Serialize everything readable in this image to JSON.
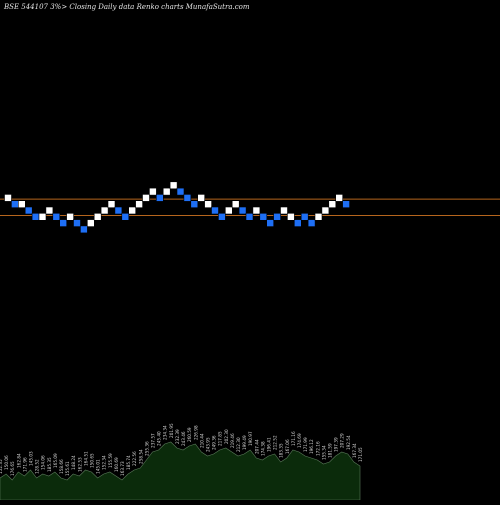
{
  "header": {
    "title": "BSE 544107 3%>  Closing Daily data  Renko  charts MunafaSutra.com"
  },
  "chart_data": {
    "type": "renko",
    "title": "BSE 544107 3%>  Closing Daily data  Renko  charts MunafaSutra.com",
    "brick_size_percent": 3,
    "colors": {
      "up": "#ffffff",
      "down": "#1e6ff5",
      "line": "#b5651d",
      "volume_fill": "#0b2b0b",
      "volume_stroke": "#5a7a5a"
    },
    "bricks": [
      {
        "dir": "up",
        "level": 12
      },
      {
        "dir": "down",
        "level": 11
      },
      {
        "dir": "up",
        "level": 11
      },
      {
        "dir": "down",
        "level": 10
      },
      {
        "dir": "down",
        "level": 9
      },
      {
        "dir": "up",
        "level": 9
      },
      {
        "dir": "up",
        "level": 10
      },
      {
        "dir": "down",
        "level": 9
      },
      {
        "dir": "down",
        "level": 8
      },
      {
        "dir": "up",
        "level": 9
      },
      {
        "dir": "down",
        "level": 8
      },
      {
        "dir": "down",
        "level": 7
      },
      {
        "dir": "up",
        "level": 8
      },
      {
        "dir": "up",
        "level": 9
      },
      {
        "dir": "up",
        "level": 10
      },
      {
        "dir": "up",
        "level": 11
      },
      {
        "dir": "down",
        "level": 10
      },
      {
        "dir": "down",
        "level": 9
      },
      {
        "dir": "up",
        "level": 10
      },
      {
        "dir": "up",
        "level": 11
      },
      {
        "dir": "up",
        "level": 12
      },
      {
        "dir": "up",
        "level": 13
      },
      {
        "dir": "down",
        "level": 12
      },
      {
        "dir": "up",
        "level": 13
      },
      {
        "dir": "up",
        "level": 14
      },
      {
        "dir": "down",
        "level": 13
      },
      {
        "dir": "down",
        "level": 12
      },
      {
        "dir": "down",
        "level": 11
      },
      {
        "dir": "up",
        "level": 12
      },
      {
        "dir": "up",
        "level": 11
      },
      {
        "dir": "down",
        "level": 10
      },
      {
        "dir": "down",
        "level": 9
      },
      {
        "dir": "up",
        "level": 10
      },
      {
        "dir": "up",
        "level": 11
      },
      {
        "dir": "down",
        "level": 10
      },
      {
        "dir": "down",
        "level": 9
      },
      {
        "dir": "up",
        "level": 10
      },
      {
        "dir": "down",
        "level": 9
      },
      {
        "dir": "down",
        "level": 8
      },
      {
        "dir": "down",
        "level": 9
      },
      {
        "dir": "up",
        "level": 10
      },
      {
        "dir": "up",
        "level": 9
      },
      {
        "dir": "down",
        "level": 8
      },
      {
        "dir": "down",
        "level": 9
      },
      {
        "dir": "down",
        "level": 8
      },
      {
        "dir": "up",
        "level": 9
      },
      {
        "dir": "up",
        "level": 10
      },
      {
        "dir": "up",
        "level": 11
      },
      {
        "dir": "up",
        "level": 12
      },
      {
        "dir": "down",
        "level": 11
      }
    ],
    "reference_lines": [
      11.8,
      9.2
    ],
    "volume": {
      "values": [
        22,
        26,
        20,
        28,
        24,
        30,
        22,
        26,
        24,
        28,
        22,
        20,
        26,
        24,
        30,
        28,
        22,
        26,
        28,
        24,
        20,
        26,
        30,
        32,
        40,
        48,
        50,
        56,
        58,
        52,
        50,
        54,
        56,
        48,
        44,
        46,
        50,
        52,
        48,
        44,
        46,
        50,
        42,
        40,
        44,
        46,
        38,
        42,
        50,
        48,
        44,
        42,
        40,
        36,
        38,
        44,
        48,
        46,
        38,
        34
      ],
      "labels": [
        "152.35",
        "150.06",
        "176.65",
        "162.84",
        "171.96",
        "145.03",
        "128.52",
        "154.06",
        "185.35",
        "165.09",
        "158.66",
        "155.61",
        "148.24",
        "162.53",
        "164.51",
        "150.65",
        "145.01",
        "152.34",
        "155.59",
        "160.69",
        "163.73",
        "185.74",
        "222.56",
        "258.54",
        "255.36",
        "237.57",
        "245.40",
        "234.34",
        "201.95",
        "232.39",
        "243.46",
        "260.59",
        "226.98",
        "210.44",
        "243.95",
        "249.36",
        "217.85",
        "202.30",
        "219.46",
        "212.30",
        "199.49",
        "190.97",
        "207.44",
        "174.38",
        "196.41",
        "212.52",
        "183.35",
        "167.06",
        "171.16",
        "174.69",
        "171.99",
        "196.12",
        "172.16",
        "155.34",
        "181.59",
        "197.39",
        "207.29",
        "192.54",
        "167.34",
        "171.05"
      ]
    }
  }
}
